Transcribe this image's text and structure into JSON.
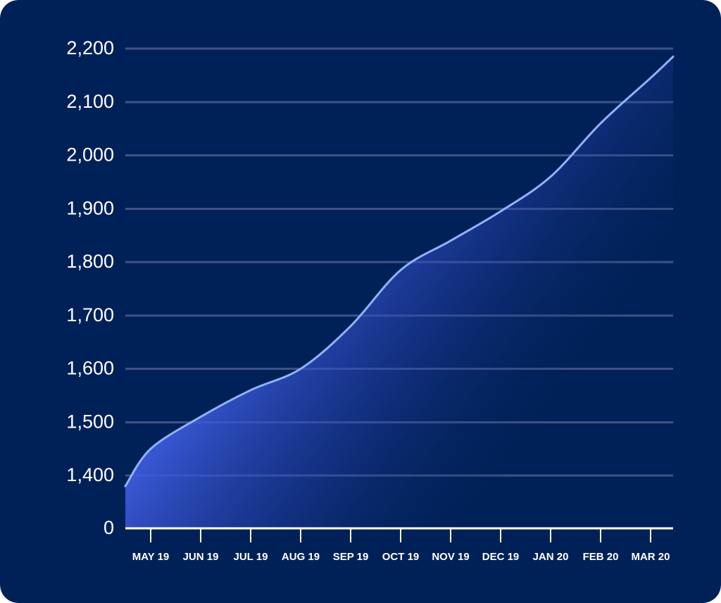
{
  "colors": {
    "background": "#002157",
    "area_fill": "#3f5ce0",
    "line": "#8db4ff",
    "grid": "#3d5484",
    "text": "#ffffff"
  },
  "chart_data": {
    "type": "area",
    "title": "",
    "xlabel": "",
    "ylabel": "",
    "categories": [
      "MAY 19",
      "JUN 19",
      "JUL 19",
      "AUG 19",
      "SEP 19",
      "OCT 19",
      "NOV 19",
      "DEC 19",
      "JAN 20",
      "FEB 20",
      "MAR 20"
    ],
    "y_ticks": [
      0,
      1400,
      1500,
      1600,
      1700,
      1800,
      1900,
      2000,
      2100,
      2200
    ],
    "y_tick_labels": [
      "0",
      "1,400",
      "1,500",
      "1,600",
      "1,700",
      "1,800",
      "1,900",
      "2,000",
      "2,100",
      "2,200"
    ],
    "y_axis_break": "axis jumps from 0 to 1,400",
    "grid": true,
    "legend": "none",
    "series": [
      {
        "x": [
          "",
          "MAY 19",
          "JUN 19",
          "JUL 19",
          "AUG 19",
          "SEP 19",
          "OCT 19",
          "NOV 19",
          "DEC 19",
          "JAN 20",
          "FEB 20",
          "MAR 20",
          ""
        ],
        "values": [
          1380,
          1450,
          1510,
          1560,
          1600,
          1680,
          1785,
          1840,
          1895,
          1960,
          2060,
          2145,
          2185
        ]
      }
    ]
  }
}
